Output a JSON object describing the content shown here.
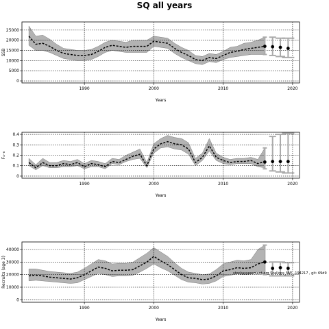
{
  "figure": {
    "title": "SQ all years",
    "note": "stockassessment.org  Scallops_NW_-194217 , git: 69d9"
  },
  "chart_data": [
    {
      "type": "line",
      "name": "ssb",
      "ylabel": "SSB",
      "xlabel": "Years",
      "xlim": [
        1981,
        2021
      ],
      "ylim": [
        -1000,
        29000
      ],
      "xticks": [
        1990,
        2000,
        2010,
        2020
      ],
      "yticks": [
        0,
        5000,
        10000,
        15000,
        20000,
        25000
      ],
      "grid": true,
      "x": [
        1982,
        1983,
        1984,
        1985,
        1986,
        1987,
        1988,
        1989,
        1990,
        1991,
        1992,
        1993,
        1994,
        1995,
        1996,
        1997,
        1998,
        1999,
        2000,
        2001,
        2002,
        2003,
        2004,
        2005,
        2006,
        2007,
        2008,
        2009,
        2010,
        2011,
        2012,
        2013,
        2014,
        2015,
        2016
      ],
      "y": [
        22000,
        18000,
        18500,
        17000,
        15000,
        13500,
        13000,
        12500,
        12500,
        13000,
        14500,
        16500,
        17500,
        17000,
        16500,
        17000,
        17000,
        17000,
        19500,
        19000,
        18500,
        16000,
        14000,
        12500,
        10500,
        10000,
        11500,
        11000,
        12500,
        14000,
        14500,
        15500,
        16000,
        16500,
        17000
      ],
      "lower": [
        17500,
        15000,
        15000,
        14000,
        12500,
        11000,
        10500,
        10000,
        10000,
        10500,
        12000,
        14000,
        15000,
        14500,
        14000,
        14000,
        14000,
        14000,
        17000,
        16500,
        16000,
        13500,
        11500,
        10000,
        8500,
        8000,
        9500,
        9000,
        10500,
        11500,
        12000,
        12500,
        13000,
        13000,
        13000
      ],
      "upper": [
        27000,
        22000,
        22500,
        20500,
        18000,
        16000,
        15500,
        15000,
        15000,
        15500,
        17000,
        19000,
        20000,
        19500,
        19000,
        20000,
        20000,
        20000,
        22000,
        21500,
        21000,
        18500,
        16500,
        15000,
        12500,
        12000,
        13500,
        13000,
        14500,
        16500,
        17000,
        18500,
        19000,
        20000,
        21500
      ],
      "forecast": {
        "x": [
          2016,
          2017,
          2018,
          2019
        ],
        "y": [
          17000,
          16800,
          16500,
          16000
        ],
        "lower": [
          13000,
          12500,
          12000,
          11500
        ],
        "upper": [
          21500,
          21500,
          21000,
          21000
        ]
      }
    },
    {
      "type": "line",
      "name": "fbar",
      "ylabel": "F₄₋₆",
      "xlabel": "Years",
      "xlim": [
        1981,
        2021
      ],
      "ylim": [
        -0.02,
        0.42
      ],
      "xticks": [
        1990,
        2000,
        2010,
        2020
      ],
      "yticks": [
        0.0,
        0.1,
        0.2,
        0.3,
        0.4
      ],
      "grid": true,
      "x": [
        1982,
        1983,
        1984,
        1985,
        1986,
        1987,
        1988,
        1989,
        1990,
        1991,
        1992,
        1993,
        1994,
        1995,
        1996,
        1997,
        1998,
        1999,
        2000,
        2001,
        2002,
        2003,
        2004,
        2005,
        2006,
        2007,
        2008,
        2009,
        2010,
        2011,
        2012,
        2013,
        2014,
        2015,
        2016
      ],
      "y": [
        0.13,
        0.08,
        0.13,
        0.1,
        0.1,
        0.12,
        0.11,
        0.13,
        0.09,
        0.12,
        0.11,
        0.09,
        0.14,
        0.13,
        0.16,
        0.19,
        0.21,
        0.1,
        0.26,
        0.31,
        0.33,
        0.31,
        0.3,
        0.26,
        0.13,
        0.18,
        0.29,
        0.18,
        0.15,
        0.13,
        0.14,
        0.14,
        0.15,
        0.12,
        0.14
      ],
      "lower": [
        0.1,
        0.06,
        0.1,
        0.08,
        0.08,
        0.09,
        0.09,
        0.1,
        0.07,
        0.09,
        0.09,
        0.07,
        0.12,
        0.11,
        0.14,
        0.16,
        0.17,
        0.08,
        0.22,
        0.27,
        0.28,
        0.26,
        0.25,
        0.21,
        0.1,
        0.15,
        0.24,
        0.15,
        0.12,
        0.11,
        0.12,
        0.12,
        0.12,
        0.09,
        0.08
      ],
      "upper": [
        0.17,
        0.11,
        0.17,
        0.13,
        0.13,
        0.15,
        0.14,
        0.16,
        0.12,
        0.15,
        0.14,
        0.12,
        0.17,
        0.16,
        0.2,
        0.23,
        0.26,
        0.13,
        0.31,
        0.36,
        0.39,
        0.37,
        0.36,
        0.32,
        0.17,
        0.22,
        0.36,
        0.22,
        0.18,
        0.16,
        0.17,
        0.17,
        0.18,
        0.16,
        0.27
      ],
      "forecast": {
        "x": [
          2016,
          2017,
          2018,
          2019
        ],
        "y": [
          0.135,
          0.14,
          0.14,
          0.14
        ],
        "lower": [
          0.07,
          0.05,
          0.04,
          0.03
        ],
        "upper": [
          0.27,
          0.38,
          0.4,
          0.41
        ]
      }
    },
    {
      "type": "line",
      "name": "rec",
      "ylabel": "Recruits (age 3)",
      "xlabel": "Years",
      "xlim": [
        1981,
        2021
      ],
      "ylim": [
        -2000,
        46000
      ],
      "xticks": [
        1990,
        2000,
        2010,
        2020
      ],
      "yticks": [
        0,
        10000,
        20000,
        30000,
        40000
      ],
      "grid": true,
      "x": [
        1982,
        1983,
        1984,
        1985,
        1986,
        1987,
        1988,
        1989,
        1990,
        1991,
        1992,
        1993,
        1994,
        1995,
        1996,
        1997,
        1998,
        1999,
        2000,
        2001,
        2002,
        2003,
        2004,
        2005,
        2006,
        2007,
        2008,
        2009,
        2010,
        2011,
        2012,
        2013,
        2014,
        2015,
        2016
      ],
      "y": [
        19000,
        19500,
        19000,
        18000,
        17500,
        17000,
        16500,
        17500,
        20000,
        23000,
        26000,
        25000,
        23000,
        23500,
        23500,
        24000,
        27000,
        30000,
        34500,
        31000,
        28000,
        24000,
        20000,
        17500,
        17000,
        16000,
        16500,
        19000,
        23000,
        24000,
        25500,
        25000,
        25500,
        28500,
        30000
      ],
      "lower": [
        15000,
        15500,
        15000,
        14500,
        14000,
        13500,
        13000,
        13500,
        16000,
        18500,
        21000,
        20000,
        18500,
        19000,
        19000,
        19500,
        22000,
        25000,
        28500,
        25500,
        23000,
        19500,
        16000,
        14000,
        13500,
        12500,
        13000,
        15000,
        18500,
        19500,
        20500,
        20000,
        20500,
        22500,
        20000
      ],
      "upper": [
        24500,
        24500,
        23500,
        22500,
        22000,
        21500,
        21000,
        22000,
        25000,
        28500,
        32000,
        31000,
        28500,
        29000,
        29000,
        30000,
        33500,
        37000,
        41500,
        38000,
        34500,
        29500,
        25000,
        22000,
        21000,
        20000,
        20500,
        24000,
        28500,
        30000,
        31500,
        31000,
        32000,
        40000,
        43500
      ],
      "forecast": {
        "x": [
          2016,
          2017,
          2018,
          2019
        ],
        "y": [
          30000,
          25000,
          25500,
          25000
        ],
        "lower": [
          20000,
          19000,
          19000,
          19000
        ],
        "upper": [
          43500,
          30000,
          30000,
          29500
        ]
      }
    }
  ]
}
